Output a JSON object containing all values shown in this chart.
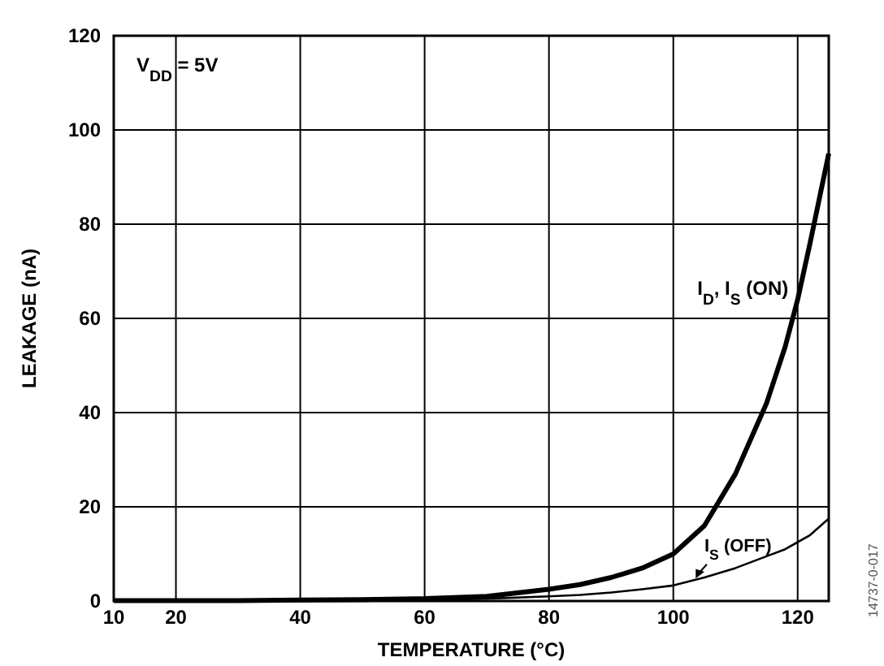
{
  "chart_data": {
    "type": "line",
    "xlabel": "TEMPERATURE (°C)",
    "ylabel": "LEAKAGE (nA)",
    "x": [
      10,
      20,
      30,
      40,
      50,
      60,
      70,
      80,
      85,
      90,
      95,
      100,
      105,
      110,
      115,
      118,
      120,
      122,
      125
    ],
    "series": [
      {
        "name": "I$_{D}$, I$_{S}$ (ON)",
        "color": "#000000",
        "values": [
          0.1,
          0.1,
          0.1,
          0.2,
          0.3,
          0.5,
          1,
          2.5,
          3.5,
          5,
          7,
          10,
          16,
          27,
          42,
          54,
          64,
          76,
          95
        ]
      },
      {
        "name": "I$_{S}$ (OFF)",
        "color": "#000000",
        "values": [
          0,
          0,
          0,
          0.1,
          0.1,
          0.2,
          0.5,
          1,
          1.3,
          1.8,
          2.5,
          3.3,
          5,
          7,
          9.5,
          11,
          12.5,
          14,
          17.5
        ]
      }
    ],
    "xlim": [
      10,
      125
    ],
    "xticks": [
      10,
      20,
      40,
      60,
      80,
      100,
      120
    ],
    "ylim": [
      0,
      120
    ],
    "yticks": [
      0,
      20,
      40,
      60,
      80,
      100,
      120
    ],
    "grid": true,
    "legend": false,
    "marker": "none",
    "line_style": "solid",
    "annotations": [
      "V$_{DD}$ = 5V",
      "14737-0-017"
    ]
  }
}
